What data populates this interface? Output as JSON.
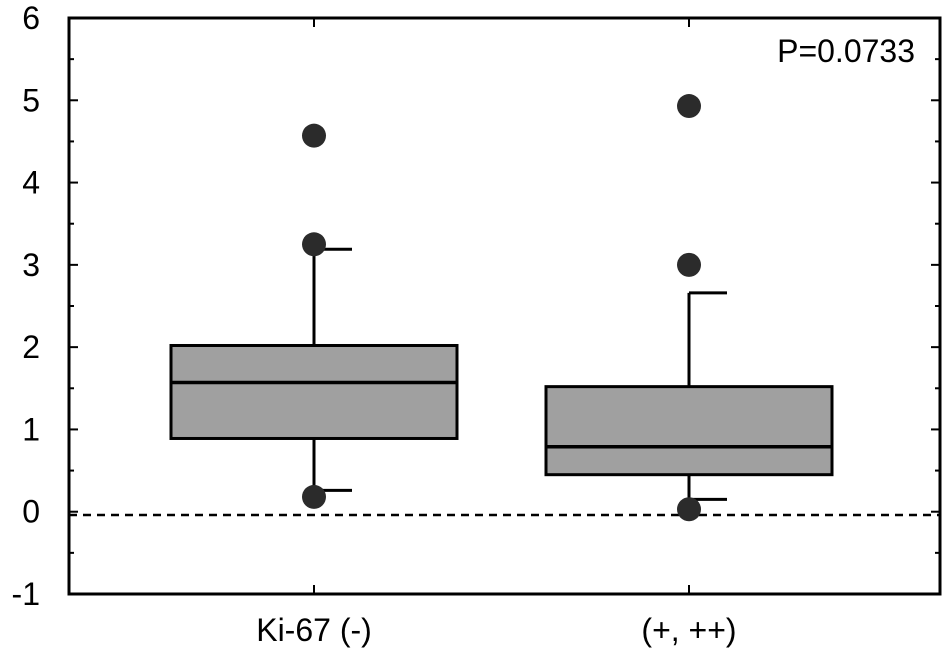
{
  "chart_data": {
    "type": "box",
    "title": "",
    "xlabel": "",
    "ylabel": "",
    "ylim": [
      -1,
      6
    ],
    "yticks": [
      -1,
      0,
      1,
      2,
      3,
      4,
      5,
      6
    ],
    "categories": [
      "Ki-67 (-)",
      "(+, ++)"
    ],
    "boxes": [
      {
        "category": "Ki-67 (-)",
        "whisker_low": 0.26,
        "q1": 0.89,
        "median": 1.57,
        "q3": 2.02,
        "whisker_high": 3.19,
        "outliers": [
          4.57,
          3.25,
          0.18
        ]
      },
      {
        "category": "(+, ++)",
        "whisker_low": 0.15,
        "q1": 0.45,
        "median": 0.79,
        "q3": 1.52,
        "whisker_high": 2.66,
        "outliers": [
          4.93,
          3.0,
          0.03
        ]
      }
    ],
    "reference_line": {
      "y": -0.04,
      "style": "dashed"
    },
    "annotation": "P=0.0733",
    "box_fill": "#a0a0a0",
    "point_color": "#2b2b2b",
    "grid": false
  }
}
